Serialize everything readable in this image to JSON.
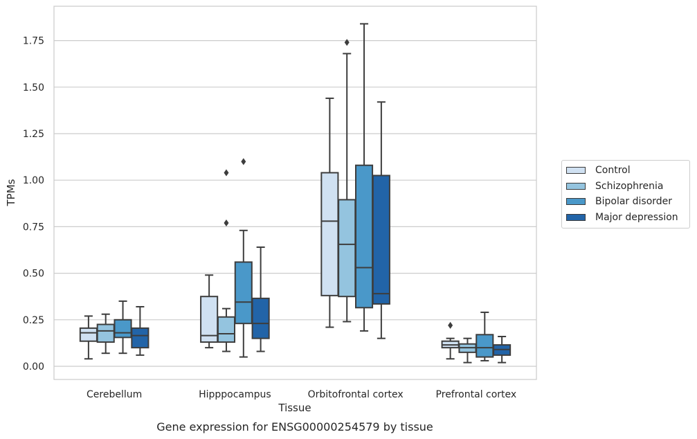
{
  "chart_data": {
    "type": "box",
    "title": "Gene expression for ENSG00000254579 by tissue",
    "xlabel": "Tissue",
    "ylabel": "TPMs",
    "ylim": [
      -0.07,
      1.94
    ],
    "yticks": [
      "0.00",
      "0.25",
      "0.50",
      "0.75",
      "1.00",
      "1.25",
      "1.50",
      "1.75"
    ],
    "ytick_values": [
      0,
      0.25,
      0.5,
      0.75,
      1.0,
      1.25,
      1.5,
      1.75
    ],
    "grid": true,
    "legend_position": "right",
    "categories": [
      "Cerebellum",
      "Hipppocampus",
      "Orbitofrontal cortex",
      "Prefrontal cortex"
    ],
    "series": [
      {
        "name": "Control",
        "color": "#d0e1f2",
        "boxes": [
          {
            "whislo": 0.04,
            "q1": 0.135,
            "med": 0.18,
            "q3": 0.205,
            "whishi": 0.27,
            "fliers": []
          },
          {
            "whislo": 0.1,
            "q1": 0.13,
            "med": 0.165,
            "q3": 0.375,
            "whishi": 0.49,
            "fliers": []
          },
          {
            "whislo": 0.21,
            "q1": 0.38,
            "med": 0.78,
            "q3": 1.04,
            "whishi": 1.44,
            "fliers": []
          },
          {
            "whislo": 0.04,
            "q1": 0.1,
            "med": 0.115,
            "q3": 0.135,
            "whishi": 0.15,
            "fliers": [
              0.22
            ]
          }
        ]
      },
      {
        "name": "Schizophrenia",
        "color": "#94c4df",
        "boxes": [
          {
            "whislo": 0.07,
            "q1": 0.13,
            "med": 0.19,
            "q3": 0.225,
            "whishi": 0.28,
            "fliers": []
          },
          {
            "whislo": 0.08,
            "q1": 0.13,
            "med": 0.175,
            "q3": 0.265,
            "whishi": 0.31,
            "fliers": [
              0.77,
              1.04
            ]
          },
          {
            "whislo": 0.24,
            "q1": 0.375,
            "med": 0.655,
            "q3": 0.895,
            "whishi": 1.68,
            "fliers": [
              1.74
            ]
          },
          {
            "whislo": 0.02,
            "q1": 0.075,
            "med": 0.1,
            "q3": 0.12,
            "whishi": 0.15,
            "fliers": []
          }
        ]
      },
      {
        "name": "Bipolar disorder",
        "color": "#4a98c9",
        "boxes": [
          {
            "whislo": 0.07,
            "q1": 0.155,
            "med": 0.18,
            "q3": 0.25,
            "whishi": 0.35,
            "fliers": []
          },
          {
            "whislo": 0.05,
            "q1": 0.23,
            "med": 0.345,
            "q3": 0.56,
            "whishi": 0.73,
            "fliers": [
              1.1
            ]
          },
          {
            "whislo": 0.19,
            "q1": 0.315,
            "med": 0.53,
            "q3": 1.08,
            "whishi": 1.84,
            "fliers": []
          },
          {
            "whislo": 0.03,
            "q1": 0.05,
            "med": 0.1,
            "q3": 0.17,
            "whishi": 0.29,
            "fliers": []
          }
        ]
      },
      {
        "name": "Major depression",
        "color": "#2264a8",
        "boxes": [
          {
            "whislo": 0.06,
            "q1": 0.1,
            "med": 0.165,
            "q3": 0.205,
            "whishi": 0.32,
            "fliers": []
          },
          {
            "whislo": 0.08,
            "q1": 0.15,
            "med": 0.23,
            "q3": 0.365,
            "whishi": 0.64,
            "fliers": []
          },
          {
            "whislo": 0.15,
            "q1": 0.335,
            "med": 0.39,
            "q3": 1.025,
            "whishi": 1.42,
            "fliers": []
          },
          {
            "whislo": 0.02,
            "q1": 0.06,
            "med": 0.09,
            "q3": 0.115,
            "whishi": 0.16,
            "fliers": []
          }
        ]
      }
    ]
  }
}
